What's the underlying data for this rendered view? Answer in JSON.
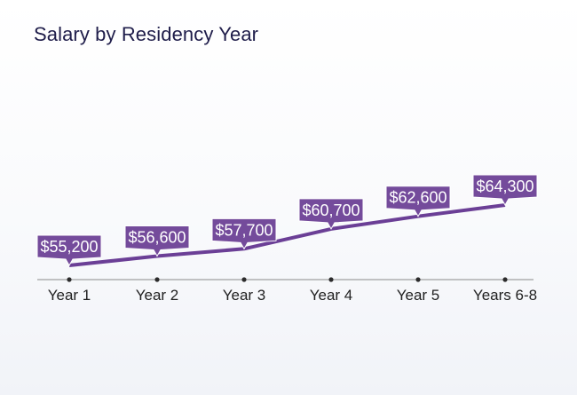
{
  "chart_data": {
    "type": "line",
    "title": "Salary by Residency Year",
    "xlabel": "",
    "ylabel": "",
    "categories": [
      "Year 1",
      "Year 2",
      "Year 3",
      "Year 4",
      "Year 5",
      "Years 6-8"
    ],
    "values": [
      55200,
      56600,
      57700,
      60700,
      62600,
      64300
    ],
    "data_labels": [
      "$55,200",
      "$56,600",
      "$57,700",
      "$60,700",
      "$62,600",
      "$64,300"
    ],
    "ylim": [
      55200,
      64300
    ],
    "grid": false,
    "legend": "none",
    "colors": {
      "line": "#6b3f96",
      "callout": "#744b9b",
      "axis": "#8a8a8a",
      "tick_dot": "#2b2b2b"
    }
  }
}
